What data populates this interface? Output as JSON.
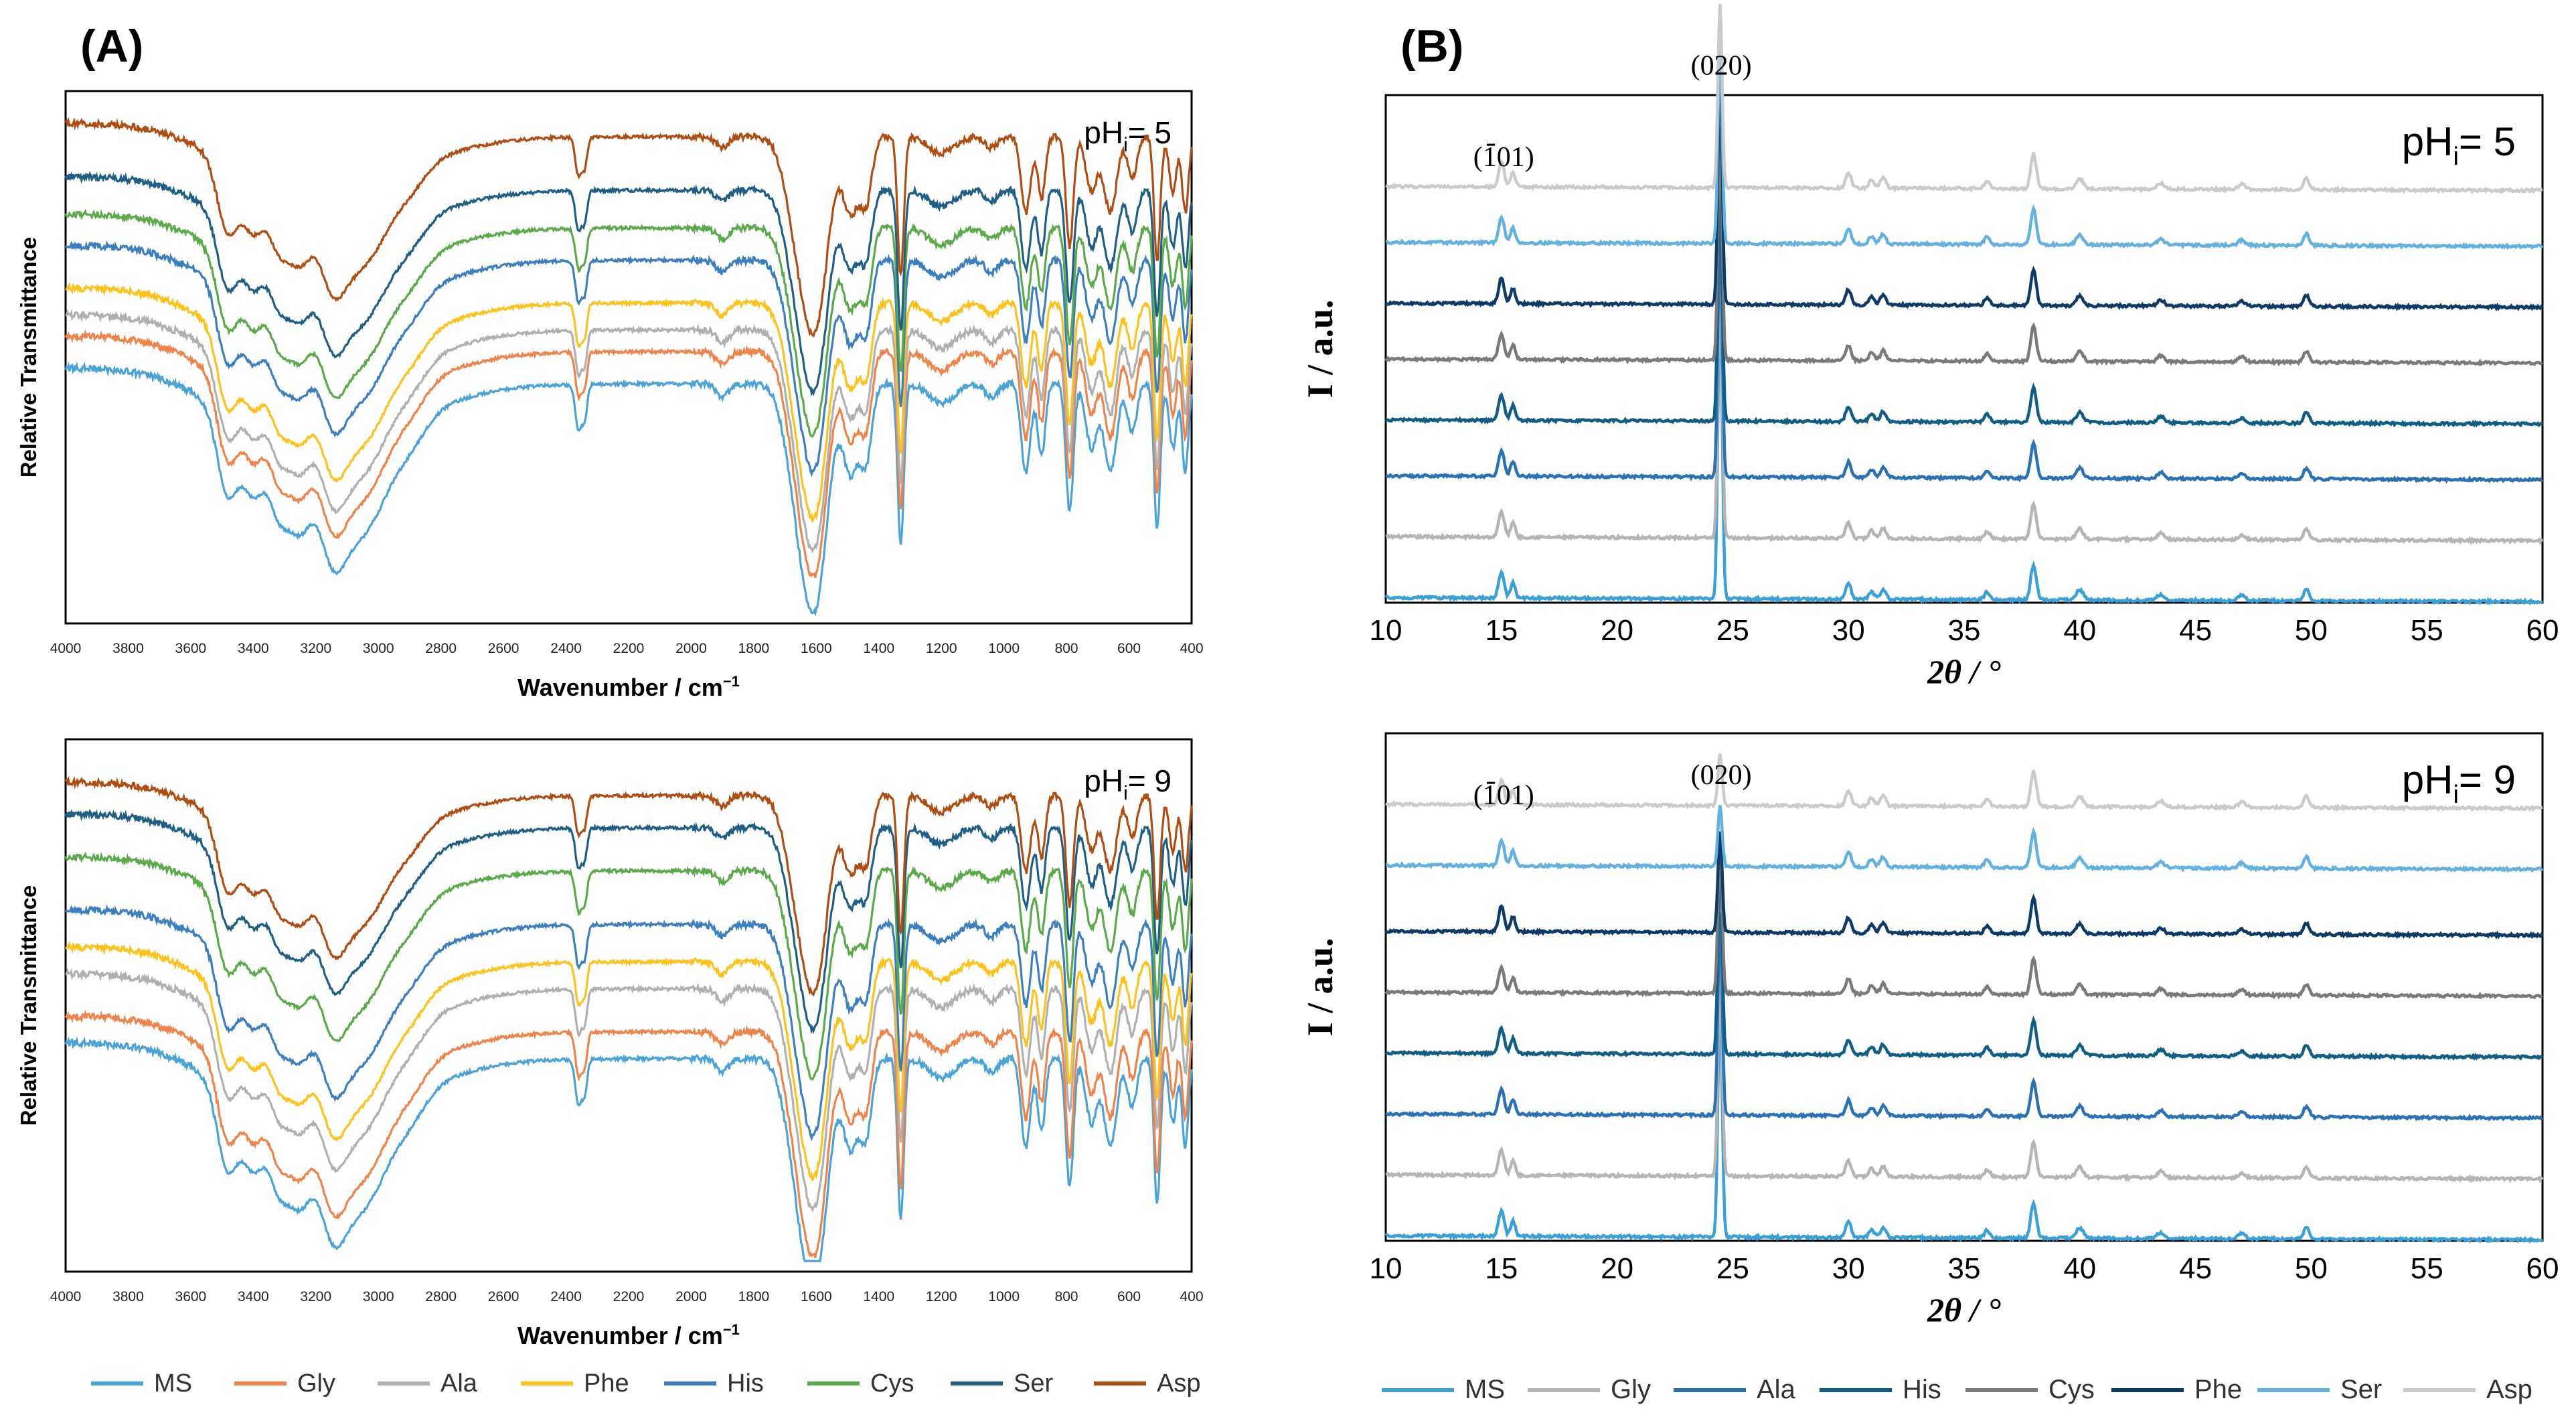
{
  "panel_labels": {
    "a": "(A)",
    "b": "(B)"
  },
  "chart_data": [
    {
      "type": "line",
      "id": "ftir-ph5",
      "title": "",
      "annotation": {
        "base": "pH",
        "sub": "i",
        "rest": "= 5"
      },
      "xlabel": "Wavenumber / cm",
      "xlabel_sup": "−1",
      "ylabel": "Relative Transmittance",
      "xlim": [
        4000,
        400
      ],
      "ylim": [
        0,
        1
      ],
      "xticks": [
        "4000",
        "3800",
        "3600",
        "3400",
        "3200",
        "3000",
        "2800",
        "2600",
        "2400",
        "2200",
        "2000",
        "1800",
        "1600",
        "1400",
        "1200",
        "1000",
        "800",
        "600",
        "400"
      ],
      "series": [
        {
          "name": "MS",
          "color": "#4aa3d8",
          "offset": 0.48
        },
        {
          "name": "Gly",
          "color": "#f0834a",
          "offset": 0.54
        },
        {
          "name": "Ala",
          "color": "#b0b0b0",
          "offset": 0.58
        },
        {
          "name": "Phe",
          "color": "#ffc21a",
          "offset": 0.63
        },
        {
          "name": "His",
          "color": "#3c7fc0",
          "offset": 0.71
        },
        {
          "name": "Cys",
          "color": "#5aaa4a",
          "offset": 0.77
        },
        {
          "name": "Ser",
          "color": "#1f5f86",
          "offset": 0.84
        },
        {
          "name": "Asp",
          "color": "#b04d12",
          "offset": 0.94
        }
      ]
    },
    {
      "type": "line",
      "id": "ftir-ph9",
      "title": "",
      "annotation": {
        "base": "pH",
        "sub": "i",
        "rest": "= 9"
      },
      "xlabel": "Wavenumber / cm",
      "xlabel_sup": "−1",
      "ylabel": "Relative Transmittance",
      "xlim": [
        4000,
        400
      ],
      "ylim": [
        0,
        1
      ],
      "xticks": [
        "4000",
        "3800",
        "3600",
        "3400",
        "3200",
        "3000",
        "2800",
        "2600",
        "2400",
        "2200",
        "2000",
        "1800",
        "1600",
        "1400",
        "1200",
        "1000",
        "800",
        "600",
        "400"
      ],
      "series": [
        {
          "name": "MS",
          "color": "#4aa3d8",
          "offset": 0.43
        },
        {
          "name": "Gly",
          "color": "#f0834a",
          "offset": 0.48
        },
        {
          "name": "Ala",
          "color": "#b0b0b0",
          "offset": 0.56
        },
        {
          "name": "Phe",
          "color": "#ffc21a",
          "offset": 0.61
        },
        {
          "name": "His",
          "color": "#3c7fc0",
          "offset": 0.68
        },
        {
          "name": "Cys",
          "color": "#5aaa4a",
          "offset": 0.78
        },
        {
          "name": "Ser",
          "color": "#1f5f86",
          "offset": 0.86
        },
        {
          "name": "Asp",
          "color": "#b04d12",
          "offset": 0.92
        }
      ]
    },
    {
      "type": "line",
      "id": "xrd-ph5",
      "title": "",
      "annotation": {
        "base": "pH",
        "sub": "i",
        "rest": "= 5"
      },
      "xlabel": "2θ / °",
      "ylabel": "I / a.u.",
      "xlim": [
        10,
        60
      ],
      "ylim": [
        0,
        1
      ],
      "xticks": [
        "10",
        "15",
        "20",
        "25",
        "30",
        "35",
        "40",
        "45",
        "50",
        "55",
        "60"
      ],
      "peak_labels": [
        {
          "text": "(101)",
          "bar_char": "1",
          "x": 15.1,
          "y": 0.86
        },
        {
          "text": "(020)",
          "x": 24.5,
          "y": 1.04
        }
      ],
      "series": [
        {
          "name": "MS",
          "color": "#3aa0d8",
          "baseline": 0.01,
          "main_peak": 0.62
        },
        {
          "name": "Gly",
          "color": "#b5b5b5",
          "baseline": 0.13,
          "main_peak": 0.55
        },
        {
          "name": "Ala",
          "color": "#2a71b5",
          "baseline": 0.25,
          "main_peak": 0.5
        },
        {
          "name": "His",
          "color": "#105e86",
          "baseline": 0.36,
          "main_peak": 0.52
        },
        {
          "name": "Cys",
          "color": "#7a7a7a",
          "baseline": 0.48,
          "main_peak": 0.46
        },
        {
          "name": "Phe",
          "color": "#0d3a66",
          "baseline": 0.59,
          "main_peak": 0.48
        },
        {
          "name": "Ser",
          "color": "#62b1e0",
          "baseline": 0.71,
          "main_peak": 0.4
        },
        {
          "name": "Asp",
          "color": "#cbcbcb",
          "baseline": 0.82,
          "main_peak": 0.36
        }
      ]
    },
    {
      "type": "line",
      "id": "xrd-ph9",
      "title": "",
      "annotation": {
        "base": "pH",
        "sub": "i",
        "rest": "= 9"
      },
      "xlabel": "2θ / °",
      "ylabel": "I / a.u.",
      "xlim": [
        10,
        60
      ],
      "ylim": [
        0,
        1
      ],
      "xticks": [
        "10",
        "15",
        "20",
        "25",
        "30",
        "35",
        "40",
        "45",
        "50",
        "55",
        "60"
      ],
      "peak_labels": [
        {
          "text": "(101)",
          "bar_char": "1",
          "x": 15.1,
          "y": 0.86
        },
        {
          "text": "(020)",
          "x": 24.5,
          "y": 0.9
        }
      ],
      "series": [
        {
          "name": "MS",
          "color": "#3aa0d8",
          "baseline": 0.01,
          "main_peak": 0.48
        },
        {
          "name": "Gly",
          "color": "#b5b5b5",
          "baseline": 0.13,
          "main_peak": 0.42
        },
        {
          "name": "Ala",
          "color": "#2a71b5",
          "baseline": 0.25,
          "main_peak": 0.4
        },
        {
          "name": "His",
          "color": "#105e86",
          "baseline": 0.37,
          "main_peak": 0.4
        },
        {
          "name": "Cys",
          "color": "#7a7a7a",
          "baseline": 0.49,
          "main_peak": 0.3
        },
        {
          "name": "Phe",
          "color": "#0d3a66",
          "baseline": 0.61,
          "main_peak": 0.2
        },
        {
          "name": "Ser",
          "color": "#62b1e0",
          "baseline": 0.74,
          "main_peak": 0.12
        },
        {
          "name": "Asp",
          "color": "#cbcbcb",
          "baseline": 0.86,
          "main_peak": 0.1
        }
      ]
    }
  ],
  "legend_a": [
    {
      "name": "MS",
      "color": "#4aa3d8"
    },
    {
      "name": "Gly",
      "color": "#f0834a"
    },
    {
      "name": "Ala",
      "color": "#b0b0b0"
    },
    {
      "name": "Phe",
      "color": "#ffc21a"
    },
    {
      "name": "His",
      "color": "#3c7fc0"
    },
    {
      "name": "Cys",
      "color": "#5aaa4a"
    },
    {
      "name": "Ser",
      "color": "#1f5f86"
    },
    {
      "name": "Asp",
      "color": "#b04d12"
    }
  ],
  "legend_b": [
    {
      "name": "MS",
      "color": "#3aa0d8"
    },
    {
      "name": "Gly",
      "color": "#b5b5b5"
    },
    {
      "name": "Ala",
      "color": "#2a71b5"
    },
    {
      "name": "His",
      "color": "#105e86"
    },
    {
      "name": "Cys",
      "color": "#7a7a7a"
    },
    {
      "name": "Phe",
      "color": "#0d3a66"
    },
    {
      "name": "Ser",
      "color": "#62b1e0"
    },
    {
      "name": "Asp",
      "color": "#cbcbcb"
    }
  ]
}
